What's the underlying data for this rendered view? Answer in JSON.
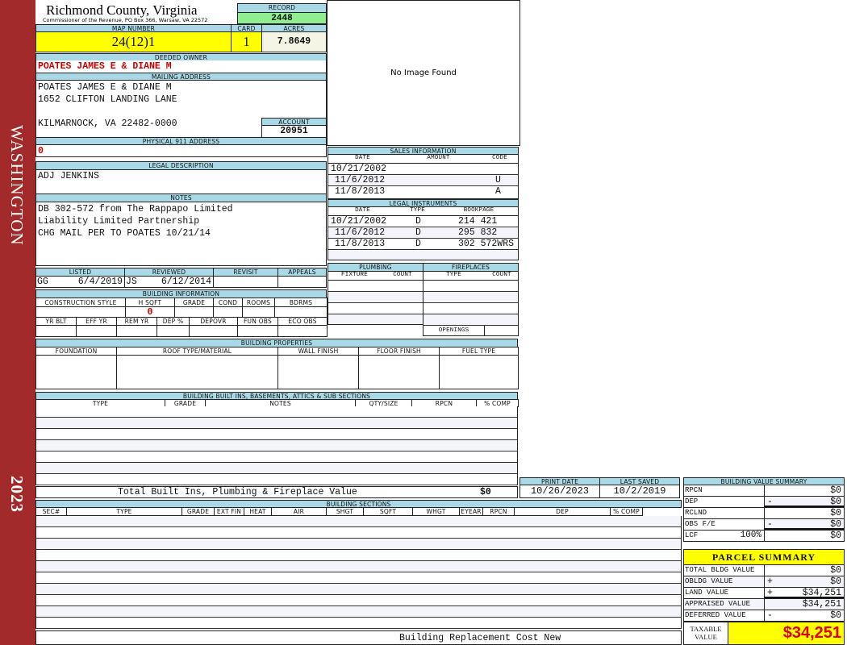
{
  "sidebar": {
    "district": "WASHINGTON",
    "year": "2023",
    "color": "#a32a2a"
  },
  "header": {
    "title": "Richmond County, Virginia",
    "subtitle": "Commissioner of the Revenue, PO Box 366, Warsaw, VA 22572",
    "record_label": "RECORD",
    "record": "2448"
  },
  "parcel": {
    "map_label": "MAP NUMBER",
    "map": "24(12)1",
    "card_label": "CARD",
    "card": "1",
    "acres_label": "ACRES",
    "acres": "7.8649"
  },
  "owner": {
    "label": "DEEDED OWNER",
    "value": "POATES JAMES E & DIANE M"
  },
  "mailing": {
    "label": "MAILING ADDRESS",
    "line1": "POATES JAMES E & DIANE M",
    "line2": "1652 CLIFTON LANDING LANE",
    "line3": "KILMARNOCK, VA 22482-0000",
    "account_label": "ACCOUNT",
    "account": "20951"
  },
  "physical": {
    "label": "PHYSICAL 911 ADDRESS",
    "value": "0"
  },
  "image": {
    "text": "No Image Found"
  },
  "legal": {
    "label": "LEGAL DESCRIPTION",
    "value": "ADJ JENKINS"
  },
  "notes": {
    "label": "NOTES",
    "lines": [
      "DB 302-572 from The Rappapo Limited",
      "Liability Limited Partnership",
      "CHG MAIL PER TO POATES 10/21/14"
    ]
  },
  "review": {
    "listed_label": "LISTED",
    "reviewed_label": "REVIEWED",
    "revisit_label": "REVISIT",
    "appeals_label": "APPEALS",
    "listed_by": "GG",
    "listed_date": "6/4/2019",
    "reviewed_by": "JS",
    "reviewed_date": "6/12/2014"
  },
  "building_info": {
    "label": "BUILDING INFORMATION",
    "cols1": [
      "CONSTRUCTION STYLE",
      "H SQFT",
      "GRADE",
      "COND",
      "ROOMS",
      "BDRMS"
    ],
    "hsqft": "0",
    "cols2": [
      "YR BLT",
      "EFF YR",
      "REM YR",
      "DEP %",
      "DEPOVR",
      "FUN OBS",
      "ECO OBS"
    ]
  },
  "sales": {
    "label": "SALES INFORMATION",
    "cols": [
      "DATE",
      "AMOUNT",
      "CODE"
    ],
    "rows": [
      {
        "date": "10/21/2002",
        "code": ""
      },
      {
        "date": "11/6/2012",
        "code": "U"
      },
      {
        "date": "11/8/2013",
        "code": "A"
      }
    ]
  },
  "instruments": {
    "label": "LEGAL INSTRUMENTS",
    "cols": [
      "DATE",
      "TYPE",
      "BOOKPAGE"
    ],
    "rows": [
      {
        "date": "10/21/2002",
        "type": "D",
        "book": "214 421"
      },
      {
        "date": "11/6/2012",
        "type": "D",
        "book": "295 832"
      },
      {
        "date": "11/8/2013",
        "type": "D",
        "book": "302 572WRS"
      }
    ]
  },
  "plumbing": {
    "label": "PLUMBING",
    "cols": [
      "FIXTURE",
      "COUNT"
    ]
  },
  "fireplaces": {
    "label": "FIREPLACES",
    "cols": [
      "TYPE",
      "COUNT"
    ],
    "openings": "OPENINGS"
  },
  "properties": {
    "label": "BUILDING PROPERTIES",
    "cols": [
      "FOUNDATION",
      "ROOF TYPE/MATERIAL",
      "WALL FINISH",
      "FLOOR FINISH",
      "FUEL TYPE"
    ]
  },
  "builtins": {
    "label": "BUILDING BUILT INS, BASEMENTS, ATTICS & SUB SECTIONS",
    "cols": [
      "TYPE",
      "GRADE",
      "NOTES",
      "QTY/SIZE",
      "RPCN",
      "% COMP"
    ],
    "total_label": "Total Built Ins, Plumbing & Fireplace Value",
    "total": "$0"
  },
  "dates": {
    "print_label": "PRINT DATE",
    "print": "10/26/2023",
    "saved_label": "LAST SAVED",
    "saved": "10/2/2019"
  },
  "sections": {
    "label": "BUILDING SECTIONS",
    "cols": [
      "SEC#",
      "TYPE",
      "GRADE",
      "EXT FIN",
      "HEAT",
      "AIR",
      "SHGT",
      "SQFT",
      "WHGT",
      "EYEAR",
      "RPCN",
      "DEP",
      "% COMP"
    ],
    "footer": "Building Replacement Cost New"
  },
  "bvs": {
    "label": "BUILDING VALUE SUMMARY",
    "rows": [
      {
        "label": "RPCN",
        "op": "",
        "value": "$0"
      },
      {
        "label": "DEP",
        "op": "-",
        "value": "$0"
      },
      {
        "label": "RCLND",
        "op": "",
        "value": "$0"
      },
      {
        "label": "OBS F/E",
        "op": "-",
        "value": "$0"
      },
      {
        "label": "LCF",
        "pct": "100%",
        "op": "",
        "value": "$0"
      }
    ]
  },
  "summary": {
    "label": "PARCEL SUMMARY",
    "rows": [
      {
        "label": "TOTAL BLDG VALUE",
        "op": "",
        "value": "$0"
      },
      {
        "label": "OBLDG VALUE",
        "op": "+",
        "value": "$0"
      },
      {
        "label": "LAND VALUE",
        "op": "+",
        "value": "$34,251"
      },
      {
        "label": "APPRAISED VALUE",
        "op": "",
        "value": "$34,251"
      },
      {
        "label": "DEFERRED VALUE",
        "op": "-",
        "value": "$0"
      }
    ],
    "taxable_label": "TAXABLE VALUE",
    "taxable": "$34,251"
  },
  "colors": {
    "header": "#a9d9e6",
    "highlight": "#ffff00",
    "record": "#90ee90",
    "accent_red": "#d00000"
  }
}
